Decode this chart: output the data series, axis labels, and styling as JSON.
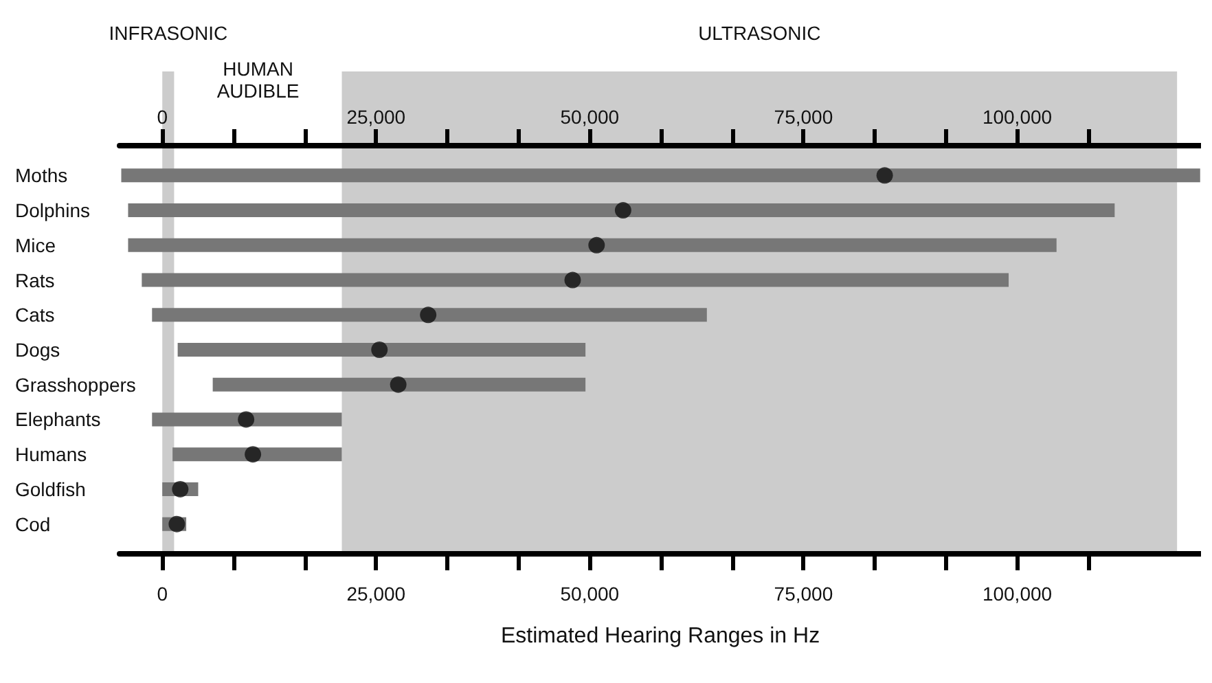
{
  "chart_data": {
    "type": "bar",
    "orientation": "horizontal",
    "xlabel": "Estimated Hearing Ranges in Hz",
    "categories": [
      "Moths",
      "Dolphins",
      "Mice",
      "Rats",
      "Cats",
      "Dogs",
      "Grasshoppers",
      "Elephants",
      "Humans",
      "Goldfish",
      "Cod"
    ],
    "series": [
      {
        "color": "#777777",
        "base": [
          -4800,
          -4000,
          -4000,
          -2400,
          -1200,
          1800,
          5900,
          -1200,
          1200,
          0,
          0
        ],
        "values": [
          126200,
          115400,
          108600,
          101400,
          64900,
          47700,
          43600,
          22200,
          19800,
          4200,
          2800
        ]
      },
      {
        "type": "scatter",
        "color": "#111111",
        "marker": "circle",
        "values": [
          84500,
          53900,
          50800,
          48000,
          31100,
          25400,
          27600,
          9800,
          10600,
          2100,
          1700
        ]
      }
    ],
    "xlim": [
      -5000,
      121500
    ],
    "xticks": [
      {
        "value": 0,
        "label": "0"
      },
      {
        "value": 8333,
        "label": null
      },
      {
        "value": 16667,
        "label": null
      },
      {
        "value": 25000,
        "label": "25,000"
      },
      {
        "value": 33333,
        "label": null
      },
      {
        "value": 41667,
        "label": null
      },
      {
        "value": 50000,
        "label": "50,000"
      },
      {
        "value": 58333,
        "label": null
      },
      {
        "value": 66667,
        "label": null
      },
      {
        "value": 75000,
        "label": "75,000"
      },
      {
        "value": 83333,
        "label": null
      },
      {
        "value": 91667,
        "label": null
      },
      {
        "value": 100000,
        "label": "100,000"
      },
      {
        "value": 108333,
        "label": null
      }
    ],
    "x2lim": [
      -5000,
      121500
    ],
    "x2ticks": [
      {
        "value": 0,
        "label": "0"
      },
      {
        "value": 8333,
        "label": null
      },
      {
        "value": 16667,
        "label": null
      },
      {
        "value": 25000,
        "label": "25,000"
      },
      {
        "value": 33333,
        "label": null
      },
      {
        "value": 41667,
        "label": null
      },
      {
        "value": 50000,
        "label": "50,000"
      },
      {
        "value": 58333,
        "label": null
      },
      {
        "value": 66667,
        "label": null
      },
      {
        "value": 75000,
        "label": "75,000"
      },
      {
        "value": 83333,
        "label": null
      },
      {
        "value": 91667,
        "label": null
      },
      {
        "value": 100000,
        "label": "100,000"
      },
      {
        "value": 108333,
        "label": null
      }
    ],
    "bands": [
      {
        "axis": "x",
        "from": 0,
        "to": 1400,
        "label": "INFRASONIC",
        "color": "#cccccc"
      },
      {
        "axis": "x",
        "from": 1400,
        "to": 21000,
        "label": "HUMAN AUDIBLE",
        "color": "#ffffff"
      },
      {
        "axis": "x",
        "from": 21000,
        "to": 118700,
        "label": "ULTRASONIC",
        "color": "#cccccc"
      }
    ],
    "grid": false
  }
}
